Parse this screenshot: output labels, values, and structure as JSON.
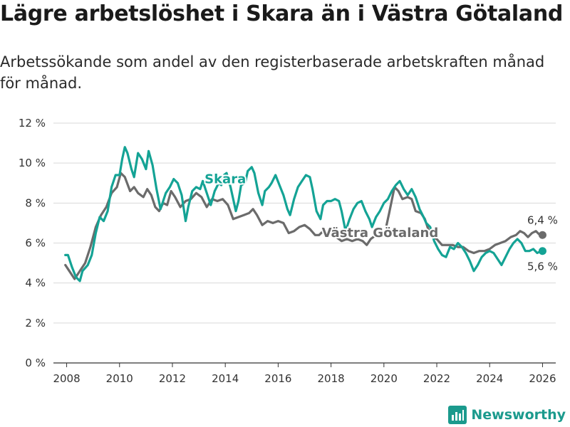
{
  "header": {
    "title": "Lägre arbetslöshet i Skara än i Västra Götaland",
    "subtitle": "Arbetssökande som andel av den registerbaserade arbetskraften månad för månad."
  },
  "brand": {
    "name": "Newsworthy"
  },
  "colors": {
    "skara": "#14a395",
    "vg": "#6b6b6b",
    "grid": "#d9d9d9",
    "axis": "#333333"
  },
  "chart_data": {
    "type": "line",
    "title": "Lägre arbetslöshet i Skara än i Västra Götaland",
    "xlabel": "",
    "ylabel": "",
    "xlim": [
      2007.5,
      2026.5
    ],
    "ylim": [
      0,
      12
    ],
    "x_ticks": [
      2008,
      2010,
      2012,
      2014,
      2016,
      2018,
      2020,
      2022,
      2024,
      2026
    ],
    "x_tick_labels": [
      "2008",
      "2010",
      "2012",
      "2014",
      "2016",
      "2018",
      "2020",
      "2022",
      "2024",
      "2026"
    ],
    "y_ticks": [
      0,
      2,
      4,
      6,
      8,
      10,
      12
    ],
    "y_tick_labels": [
      "0 %",
      "2 %",
      "4 %",
      "6 %",
      "8 %",
      "10 %",
      "12 %"
    ],
    "grid": true,
    "series": [
      {
        "name": "Västra Götaland",
        "end_label": "6,4 %",
        "points": [
          [
            2007.95,
            4.9
          ],
          [
            2008.1,
            4.6
          ],
          [
            2008.3,
            4.2
          ],
          [
            2008.5,
            4.6
          ],
          [
            2008.7,
            5.0
          ],
          [
            2008.9,
            5.8
          ],
          [
            2009.1,
            6.8
          ],
          [
            2009.3,
            7.4
          ],
          [
            2009.5,
            7.8
          ],
          [
            2009.7,
            8.5
          ],
          [
            2009.9,
            8.8
          ],
          [
            2010.05,
            9.5
          ],
          [
            2010.2,
            9.3
          ],
          [
            2010.4,
            8.6
          ],
          [
            2010.55,
            8.8
          ],
          [
            2010.7,
            8.5
          ],
          [
            2010.9,
            8.3
          ],
          [
            2011.05,
            8.7
          ],
          [
            2011.2,
            8.4
          ],
          [
            2011.35,
            7.8
          ],
          [
            2011.5,
            7.6
          ],
          [
            2011.65,
            8.0
          ],
          [
            2011.8,
            7.9
          ],
          [
            2011.95,
            8.6
          ],
          [
            2012.1,
            8.3
          ],
          [
            2012.3,
            7.8
          ],
          [
            2012.5,
            8.1
          ],
          [
            2012.7,
            8.2
          ],
          [
            2012.9,
            8.5
          ],
          [
            2013.1,
            8.3
          ],
          [
            2013.3,
            7.8
          ],
          [
            2013.5,
            8.2
          ],
          [
            2013.7,
            8.1
          ],
          [
            2013.9,
            8.2
          ],
          [
            2014.1,
            7.9
          ],
          [
            2014.3,
            7.2
          ],
          [
            2014.5,
            7.3
          ],
          [
            2014.7,
            7.4
          ],
          [
            2014.9,
            7.5
          ],
          [
            2015.05,
            7.7
          ],
          [
            2015.2,
            7.4
          ],
          [
            2015.4,
            6.9
          ],
          [
            2015.6,
            7.1
          ],
          [
            2015.8,
            7.0
          ],
          [
            2016.0,
            7.1
          ],
          [
            2016.2,
            7.0
          ],
          [
            2016.4,
            6.5
          ],
          [
            2016.6,
            6.6
          ],
          [
            2016.8,
            6.8
          ],
          [
            2017.0,
            6.9
          ],
          [
            2017.2,
            6.7
          ],
          [
            2017.4,
            6.4
          ],
          [
            2017.55,
            6.4
          ],
          [
            2017.7,
            6.6
          ],
          [
            2017.9,
            6.4
          ],
          [
            2018.05,
            6.5
          ],
          [
            2018.2,
            6.3
          ],
          [
            2018.4,
            6.1
          ],
          [
            2018.6,
            6.2
          ],
          [
            2018.8,
            6.1
          ],
          [
            2019.0,
            6.2
          ],
          [
            2019.2,
            6.1
          ],
          [
            2019.35,
            5.9
          ],
          [
            2019.5,
            6.2
          ],
          [
            2019.7,
            6.4
          ],
          [
            2019.9,
            6.5
          ],
          [
            2020.05,
            6.6
          ],
          [
            2020.2,
            7.5
          ],
          [
            2020.4,
            8.8
          ],
          [
            2020.55,
            8.6
          ],
          [
            2020.7,
            8.2
          ],
          [
            2020.9,
            8.3
          ],
          [
            2021.05,
            8.2
          ],
          [
            2021.2,
            7.6
          ],
          [
            2021.4,
            7.5
          ],
          [
            2021.55,
            7.2
          ],
          [
            2021.7,
            6.6
          ],
          [
            2021.85,
            6.3
          ],
          [
            2022.0,
            6.2
          ],
          [
            2022.2,
            5.9
          ],
          [
            2022.4,
            5.9
          ],
          [
            2022.6,
            5.9
          ],
          [
            2022.8,
            5.8
          ],
          [
            2023.0,
            5.8
          ],
          [
            2023.2,
            5.6
          ],
          [
            2023.4,
            5.5
          ],
          [
            2023.6,
            5.6
          ],
          [
            2023.8,
            5.6
          ],
          [
            2024.0,
            5.7
          ],
          [
            2024.2,
            5.9
          ],
          [
            2024.4,
            6.0
          ],
          [
            2024.6,
            6.1
          ],
          [
            2024.8,
            6.3
          ],
          [
            2025.0,
            6.4
          ],
          [
            2025.15,
            6.6
          ],
          [
            2025.3,
            6.5
          ],
          [
            2025.45,
            6.3
          ],
          [
            2025.6,
            6.5
          ],
          [
            2025.75,
            6.6
          ],
          [
            2025.9,
            6.4
          ],
          [
            2026.0,
            6.4
          ]
        ]
      },
      {
        "name": "Skara",
        "end_label": "5,6 %",
        "points": [
          [
            2007.95,
            5.4
          ],
          [
            2008.05,
            5.4
          ],
          [
            2008.2,
            4.8
          ],
          [
            2008.35,
            4.3
          ],
          [
            2008.5,
            4.1
          ],
          [
            2008.6,
            4.6
          ],
          [
            2008.8,
            4.9
          ],
          [
            2008.95,
            5.4
          ],
          [
            2009.1,
            6.5
          ],
          [
            2009.25,
            7.3
          ],
          [
            2009.4,
            7.1
          ],
          [
            2009.55,
            7.6
          ],
          [
            2009.7,
            8.8
          ],
          [
            2009.85,
            9.4
          ],
          [
            2010.0,
            9.4
          ],
          [
            2010.1,
            10.2
          ],
          [
            2010.2,
            10.8
          ],
          [
            2010.3,
            10.5
          ],
          [
            2010.45,
            9.7
          ],
          [
            2010.55,
            9.3
          ],
          [
            2010.7,
            10.5
          ],
          [
            2010.85,
            10.2
          ],
          [
            2011.0,
            9.7
          ],
          [
            2011.1,
            10.6
          ],
          [
            2011.25,
            9.9
          ],
          [
            2011.4,
            8.7
          ],
          [
            2011.55,
            7.7
          ],
          [
            2011.65,
            8.1
          ],
          [
            2011.75,
            8.5
          ],
          [
            2011.9,
            8.8
          ],
          [
            2012.05,
            9.2
          ],
          [
            2012.2,
            9.0
          ],
          [
            2012.35,
            8.4
          ],
          [
            2012.5,
            7.1
          ],
          [
            2012.6,
            7.8
          ],
          [
            2012.75,
            8.6
          ],
          [
            2012.9,
            8.8
          ],
          [
            2013.05,
            8.7
          ],
          [
            2013.15,
            9.1
          ],
          [
            2013.3,
            8.5
          ],
          [
            2013.45,
            7.9
          ],
          [
            2013.6,
            8.6
          ],
          [
            2013.75,
            9.0
          ],
          [
            2013.85,
            8.9
          ],
          [
            2013.95,
            9.4
          ],
          [
            2014.05,
            9.5
          ],
          [
            2014.2,
            8.8
          ],
          [
            2014.3,
            8.2
          ],
          [
            2014.4,
            7.6
          ],
          [
            2014.5,
            8.1
          ],
          [
            2014.6,
            8.9
          ],
          [
            2014.75,
            9.0
          ],
          [
            2014.85,
            9.6
          ],
          [
            2015.0,
            9.8
          ],
          [
            2015.1,
            9.5
          ],
          [
            2015.25,
            8.5
          ],
          [
            2015.4,
            7.9
          ],
          [
            2015.5,
            8.6
          ],
          [
            2015.65,
            8.8
          ],
          [
            2015.75,
            9.0
          ],
          [
            2015.9,
            9.4
          ],
          [
            2016.05,
            8.9
          ],
          [
            2016.2,
            8.4
          ],
          [
            2016.35,
            7.7
          ],
          [
            2016.45,
            7.4
          ],
          [
            2016.6,
            8.2
          ],
          [
            2016.75,
            8.8
          ],
          [
            2016.9,
            9.1
          ],
          [
            2017.05,
            9.4
          ],
          [
            2017.2,
            9.3
          ],
          [
            2017.3,
            8.7
          ],
          [
            2017.45,
            7.6
          ],
          [
            2017.6,
            7.2
          ],
          [
            2017.7,
            7.9
          ],
          [
            2017.85,
            8.1
          ],
          [
            2018.0,
            8.1
          ],
          [
            2018.15,
            8.2
          ],
          [
            2018.3,
            8.1
          ],
          [
            2018.4,
            7.6
          ],
          [
            2018.55,
            6.6
          ],
          [
            2018.7,
            7.2
          ],
          [
            2018.85,
            7.7
          ],
          [
            2019.0,
            8.0
          ],
          [
            2019.15,
            8.1
          ],
          [
            2019.3,
            7.6
          ],
          [
            2019.45,
            7.2
          ],
          [
            2019.55,
            6.8
          ],
          [
            2019.7,
            7.3
          ],
          [
            2019.85,
            7.6
          ],
          [
            2020.0,
            8.0
          ],
          [
            2020.15,
            8.2
          ],
          [
            2020.3,
            8.6
          ],
          [
            2020.45,
            8.9
          ],
          [
            2020.6,
            9.1
          ],
          [
            2020.75,
            8.7
          ],
          [
            2020.9,
            8.4
          ],
          [
            2021.05,
            8.7
          ],
          [
            2021.2,
            8.3
          ],
          [
            2021.35,
            7.7
          ],
          [
            2021.5,
            7.3
          ],
          [
            2021.6,
            7.0
          ],
          [
            2021.75,
            6.8
          ],
          [
            2021.9,
            6.1
          ],
          [
            2022.05,
            5.7
          ],
          [
            2022.2,
            5.4
          ],
          [
            2022.35,
            5.3
          ],
          [
            2022.5,
            5.8
          ],
          [
            2022.65,
            5.7
          ],
          [
            2022.8,
            6.0
          ],
          [
            2022.95,
            5.8
          ],
          [
            2023.1,
            5.5
          ],
          [
            2023.25,
            5.1
          ],
          [
            2023.4,
            4.6
          ],
          [
            2023.55,
            4.9
          ],
          [
            2023.7,
            5.3
          ],
          [
            2023.85,
            5.5
          ],
          [
            2024.0,
            5.6
          ],
          [
            2024.15,
            5.5
          ],
          [
            2024.3,
            5.2
          ],
          [
            2024.45,
            4.9
          ],
          [
            2024.6,
            5.3
          ],
          [
            2024.75,
            5.7
          ],
          [
            2024.9,
            6.0
          ],
          [
            2025.05,
            6.2
          ],
          [
            2025.2,
            6.0
          ],
          [
            2025.35,
            5.6
          ],
          [
            2025.5,
            5.6
          ],
          [
            2025.65,
            5.7
          ],
          [
            2025.8,
            5.5
          ],
          [
            2025.95,
            5.6
          ],
          [
            2026.0,
            5.6
          ]
        ]
      }
    ]
  }
}
